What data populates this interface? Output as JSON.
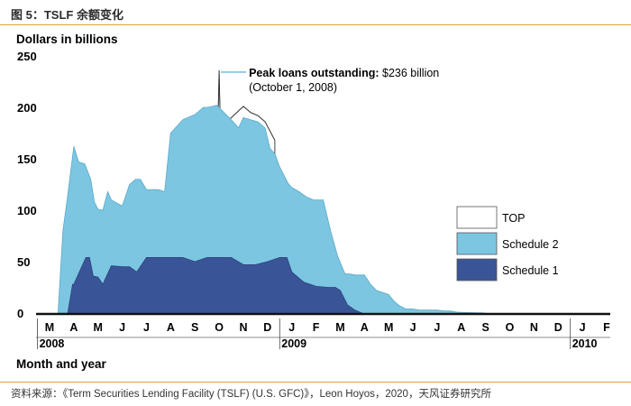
{
  "figure": {
    "title": "图 5：TSLF 余额变化",
    "source": "资料来源：《Term Securities Lending Facility (TSLF) (U.S. GFC)》，Leon Hoyos，2020，天风证券研究所"
  },
  "chart_data": {
    "type": "area",
    "ylabel": "Dollars in billions",
    "xlabel": "Month and year",
    "ylim": [
      0,
      250
    ],
    "yticks": [
      "0",
      "50",
      "100",
      "150",
      "200",
      "250"
    ],
    "month_labels": [
      "M",
      "A",
      "M",
      "J",
      "J",
      "A",
      "S",
      "O",
      "N",
      "D",
      "J",
      "F",
      "M",
      "A",
      "M",
      "J",
      "J",
      "A",
      "S",
      "O",
      "N",
      "D",
      "J",
      "F"
    ],
    "year_labels": [
      {
        "label": "2008",
        "month_index": 0
      },
      {
        "label": "2009",
        "month_index": 10
      },
      {
        "label": "2010",
        "month_index": 22
      }
    ],
    "annotation": {
      "bold": "Peak loans outstanding:",
      "text": "$236 billion",
      "subtext": "(October 1, 2008)",
      "month_index": 7.0,
      "value": 236
    },
    "legend": [
      {
        "name": "TOP",
        "color": "#ffffff"
      },
      {
        "name": "Schedule 2",
        "color": "#7cc6e2"
      },
      {
        "name": "Schedule 1",
        "color": "#3a5597"
      }
    ],
    "series": [
      {
        "name": "TOP",
        "color": "#ffffff",
        "x": [
          6.95,
          7.0,
          7.05,
          8.0,
          8.3,
          8.6,
          8.9,
          9.3
        ],
        "y": [
          180,
          236,
          180,
          201,
          195,
          192,
          186,
          168
        ]
      },
      {
        "name": "Schedule 2",
        "color": "#7cc6e2",
        "x": [
          0.35,
          0.55,
          0.75,
          1.0,
          1.2,
          1.45,
          1.7,
          1.85,
          2.0,
          2.2,
          2.4,
          2.55,
          2.7,
          3.0,
          3.3,
          3.55,
          3.75,
          4.0,
          4.25,
          4.5,
          4.75,
          5.0,
          5.5,
          6.0,
          6.35,
          6.55,
          6.9,
          7.0,
          7.2,
          7.5,
          7.8,
          8.0,
          8.3,
          8.6,
          8.9,
          9.1,
          9.3,
          9.5,
          9.7,
          9.85,
          10.0,
          10.3,
          10.6,
          10.9,
          11.3,
          11.6,
          11.9,
          12.2,
          12.4,
          12.6,
          13.0,
          13.25,
          13.5,
          14.0,
          14.2,
          14.45,
          14.7,
          15.0,
          15.25,
          15.5,
          15.8,
          16.0,
          16.3,
          16.55,
          16.8,
          17.2,
          17.6,
          17.85,
          18.0
        ],
        "y": [
          0,
          80,
          115,
          162,
          147,
          145,
          130,
          108,
          101,
          100,
          118,
          110,
          108,
          104,
          125,
          130,
          130,
          120,
          120,
          120,
          118,
          175,
          188,
          193,
          200,
          200,
          202,
          200,
          195,
          188,
          180,
          190,
          188,
          186,
          180,
          160,
          155,
          142,
          133,
          126,
          122,
          118,
          113,
          110,
          110,
          80,
          55,
          38,
          38,
          37,
          37,
          28,
          22,
          18,
          12,
          7,
          4,
          4,
          3,
          3,
          3,
          3,
          2,
          2,
          1,
          0.5,
          0.3,
          0.2,
          0
        ]
      },
      {
        "name": "Schedule 1",
        "color": "#3a5597",
        "x": [
          0.75,
          0.95,
          1.0,
          1.5,
          1.65,
          1.8,
          2.0,
          2.2,
          2.55,
          3.0,
          3.3,
          3.6,
          4.0,
          4.5,
          5.0,
          5.5,
          6.0,
          6.5,
          7.0,
          7.5,
          8.0,
          8.5,
          9.0,
          9.5,
          9.8,
          10.0,
          10.5,
          11.0,
          11.5,
          11.8,
          12.0,
          12.3,
          12.6,
          12.9
        ],
        "y": [
          0,
          28,
          28,
          54,
          54,
          36,
          35,
          28,
          46,
          45,
          45,
          40,
          54,
          54,
          54,
          54,
          50,
          54,
          54,
          54,
          47,
          47,
          50,
          54,
          54,
          40,
          30,
          26,
          25,
          25,
          22,
          8,
          3,
          0
        ]
      }
    ]
  }
}
